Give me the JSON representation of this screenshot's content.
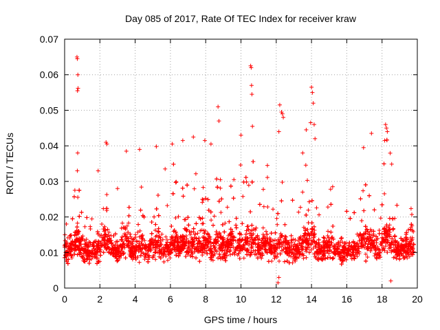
{
  "chart_data": {
    "type": "scatter",
    "title": "Day 085 of 2017, Rate Of TEC Index for receiver kraw",
    "xlabel": "GPS time / hours",
    "ylabel": "ROTI / TECUs",
    "xlim": [
      0,
      20
    ],
    "ylim": [
      0,
      0.07
    ],
    "xticks": [
      "0",
      "2",
      "4",
      "6",
      "8",
      "10",
      "12",
      "14",
      "16",
      "18",
      "20"
    ],
    "yticks": [
      "0",
      "0.01",
      "0.02",
      "0.03",
      "0.04",
      "0.05",
      "0.06",
      "0.07"
    ],
    "grid": true,
    "marker": "plus",
    "color": "#ff0000",
    "series": [
      {
        "name": "ROTI",
        "notable_points": [
          [
            0.7,
            0.065
          ],
          [
            0.72,
            0.0645
          ],
          [
            0.75,
            0.06
          ],
          [
            0.73,
            0.0555
          ],
          [
            0.76,
            0.0562
          ],
          [
            0.74,
            0.038
          ],
          [
            0.72,
            0.033
          ],
          [
            2.35,
            0.041
          ],
          [
            2.4,
            0.0405
          ],
          [
            3.5,
            0.0385
          ],
          [
            4.25,
            0.039
          ],
          [
            5.2,
            0.0398
          ],
          [
            6.1,
            0.0405
          ],
          [
            6.7,
            0.0415
          ],
          [
            7.3,
            0.0425
          ],
          [
            7.95,
            0.0415
          ],
          [
            8.3,
            0.0405
          ],
          [
            8.7,
            0.051
          ],
          [
            8.75,
            0.047
          ],
          [
            10.0,
            0.043
          ],
          [
            10.55,
            0.0625
          ],
          [
            10.58,
            0.062
          ],
          [
            10.6,
            0.057
          ],
          [
            10.62,
            0.0545
          ],
          [
            10.65,
            0.0455
          ],
          [
            12.2,
            0.0515
          ],
          [
            12.3,
            0.0495
          ],
          [
            12.35,
            0.049
          ],
          [
            12.4,
            0.048
          ],
          [
            12.15,
            0.044
          ],
          [
            14.0,
            0.0565
          ],
          [
            14.05,
            0.055
          ],
          [
            14.1,
            0.052
          ],
          [
            13.95,
            0.0465
          ],
          [
            14.15,
            0.046
          ],
          [
            14.2,
            0.042
          ],
          [
            13.7,
            0.0445
          ],
          [
            17.4,
            0.0435
          ],
          [
            16.95,
            0.0395
          ],
          [
            18.2,
            0.046
          ],
          [
            18.25,
            0.045
          ],
          [
            18.3,
            0.044
          ],
          [
            18.15,
            0.0415
          ],
          [
            12.1,
            0.0015
          ],
          [
            18.5,
            0.002
          ],
          [
            12.15,
            0.003
          ],
          [
            0.1,
            0.018
          ],
          [
            19.7,
            0.0175
          ],
          [
            15.2,
            0.0285
          ],
          [
            13.5,
            0.038
          ],
          [
            11.5,
            0.0345
          ],
          [
            9.6,
            0.0305
          ],
          [
            5.7,
            0.0335
          ],
          [
            3.0,
            0.028
          ],
          [
            1.9,
            0.033
          ]
        ],
        "bulk_range": [
          0.004,
          0.018
        ]
      }
    ]
  }
}
